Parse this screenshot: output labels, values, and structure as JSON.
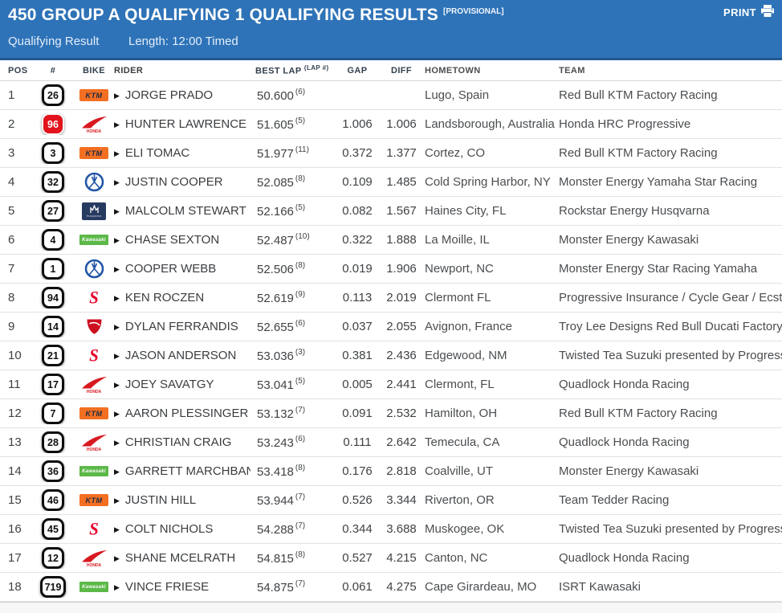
{
  "header": {
    "title": "450 GROUP A QUALIFYING 1 QUALIFYING RESULTS",
    "provisional": "[PROVISIONAL]",
    "print_label": "PRINT",
    "session_label": "Qualifying Result",
    "length_label": "Length: 12:00 Timed",
    "colors": {
      "header_bg": "#2e73b8",
      "header_border": "#215a8f",
      "accent_red_plate": "#e2131c"
    }
  },
  "columns": {
    "pos": "POS",
    "num": "#",
    "bike": "BIKE",
    "rider": "RIDER",
    "best_lap": "BEST LAP",
    "lap_sup": "(LAP #)",
    "gap": "GAP",
    "diff": "DIFF",
    "hometown": "HOMETOWN",
    "team": "TEAM"
  },
  "brand_colors": {
    "KTM": "#f36f21",
    "Honda": "#d71920",
    "Yamaha": "#2356a8",
    "Husqvarna": "#273a60",
    "Kawasaki": "#5cb848",
    "Suzuki": "#e4002b",
    "Ducati": "#cc0f1f"
  },
  "rows": [
    {
      "pos": "1",
      "num": "26",
      "plate": "standard",
      "bike": "KTM",
      "rider": "JORGE PRADO",
      "best_lap": "50.600",
      "lap": "6",
      "gap": "",
      "diff": "",
      "hometown": "Lugo, Spain",
      "team": "Red Bull KTM Factory Racing"
    },
    {
      "pos": "2",
      "num": "96",
      "plate": "red",
      "bike": "Honda",
      "rider": "HUNTER LAWRENCE",
      "best_lap": "51.605",
      "lap": "5",
      "gap": "1.006",
      "diff": "1.006",
      "hometown": "Landsborough, Australia",
      "team": "Honda HRC Progressive"
    },
    {
      "pos": "3",
      "num": "3",
      "plate": "standard",
      "bike": "KTM",
      "rider": "ELI TOMAC",
      "best_lap": "51.977",
      "lap": "11",
      "gap": "0.372",
      "diff": "1.377",
      "hometown": "Cortez, CO",
      "team": "Red Bull KTM Factory Racing"
    },
    {
      "pos": "4",
      "num": "32",
      "plate": "standard",
      "bike": "Yamaha",
      "rider": "JUSTIN COOPER",
      "best_lap": "52.085",
      "lap": "8",
      "gap": "0.109",
      "diff": "1.485",
      "hometown": "Cold Spring Harbor, NY",
      "team": "Monster Energy Yamaha Star Racing"
    },
    {
      "pos": "5",
      "num": "27",
      "plate": "standard",
      "bike": "Husqvarna",
      "rider": "MALCOLM STEWART",
      "best_lap": "52.166",
      "lap": "5",
      "gap": "0.082",
      "diff": "1.567",
      "hometown": "Haines City, FL",
      "team": "Rockstar Energy Husqvarna"
    },
    {
      "pos": "6",
      "num": "4",
      "plate": "standard",
      "bike": "Kawasaki",
      "rider": "CHASE SEXTON",
      "best_lap": "52.487",
      "lap": "10",
      "gap": "0.322",
      "diff": "1.888",
      "hometown": "La Moille, IL",
      "team": "Monster Energy Kawasaki"
    },
    {
      "pos": "7",
      "num": "1",
      "plate": "standard",
      "bike": "Yamaha",
      "rider": "COOPER WEBB",
      "best_lap": "52.506",
      "lap": "8",
      "gap": "0.019",
      "diff": "1.906",
      "hometown": "Newport, NC",
      "team": "Monster Energy Star Racing Yamaha"
    },
    {
      "pos": "8",
      "num": "94",
      "plate": "standard",
      "bike": "Suzuki",
      "rider": "KEN ROCZEN",
      "best_lap": "52.619",
      "lap": "9",
      "gap": "0.113",
      "diff": "2.019",
      "hometown": "Clermont FL",
      "team": "Progressive Insurance / Cycle Gear / Ecstar Suzuki"
    },
    {
      "pos": "9",
      "num": "14",
      "plate": "standard",
      "bike": "Ducati",
      "rider": "DYLAN FERRANDIS",
      "best_lap": "52.655",
      "lap": "6",
      "gap": "0.037",
      "diff": "2.055",
      "hometown": "Avignon, France",
      "team": "Troy Lee Designs Red Bull Ducati Factory Racing"
    },
    {
      "pos": "10",
      "num": "21",
      "plate": "standard",
      "bike": "Suzuki",
      "rider": "JASON ANDERSON",
      "best_lap": "53.036",
      "lap": "3",
      "gap": "0.381",
      "diff": "2.436",
      "hometown": "Edgewood, NM",
      "team": "Twisted Tea Suzuki presented by Progressive Insurance"
    },
    {
      "pos": "11",
      "num": "17",
      "plate": "standard",
      "bike": "Honda",
      "rider": "JOEY SAVATGY",
      "best_lap": "53.041",
      "lap": "5",
      "gap": "0.005",
      "diff": "2.441",
      "hometown": "Clermont, FL",
      "team": "Quadlock Honda Racing"
    },
    {
      "pos": "12",
      "num": "7",
      "plate": "standard",
      "bike": "KTM",
      "rider": "AARON PLESSINGER",
      "best_lap": "53.132",
      "lap": "7",
      "gap": "0.091",
      "diff": "2.532",
      "hometown": "Hamilton, OH",
      "team": "Red Bull KTM Factory Racing"
    },
    {
      "pos": "13",
      "num": "28",
      "plate": "standard",
      "bike": "Honda",
      "rider": "CHRISTIAN CRAIG",
      "best_lap": "53.243",
      "lap": "6",
      "gap": "0.111",
      "diff": "2.642",
      "hometown": "Temecula, CA",
      "team": "Quadlock Honda Racing"
    },
    {
      "pos": "14",
      "num": "36",
      "plate": "standard",
      "bike": "Kawasaki",
      "rider": "GARRETT MARCHBANKS",
      "best_lap": "53.418",
      "lap": "8",
      "gap": "0.176",
      "diff": "2.818",
      "hometown": "Coalville, UT",
      "team": "Monster Energy Kawasaki"
    },
    {
      "pos": "15",
      "num": "46",
      "plate": "standard",
      "bike": "KTM",
      "rider": "JUSTIN HILL",
      "best_lap": "53.944",
      "lap": "7",
      "gap": "0.526",
      "diff": "3.344",
      "hometown": "Riverton, OR",
      "team": "Team Tedder Racing"
    },
    {
      "pos": "16",
      "num": "45",
      "plate": "standard",
      "bike": "Suzuki",
      "rider": "COLT NICHOLS",
      "best_lap": "54.288",
      "lap": "7",
      "gap": "0.344",
      "diff": "3.688",
      "hometown": "Muskogee, OK",
      "team": "Twisted Tea Suzuki presented by Progressive Insurance"
    },
    {
      "pos": "17",
      "num": "12",
      "plate": "standard",
      "bike": "Honda",
      "rider": "SHANE MCELRATH",
      "best_lap": "54.815",
      "lap": "8",
      "gap": "0.527",
      "diff": "4.215",
      "hometown": "Canton, NC",
      "team": "Quadlock Honda Racing"
    },
    {
      "pos": "18",
      "num": "719",
      "plate": "standard",
      "bike": "Kawasaki",
      "rider": "VINCE FRIESE",
      "best_lap": "54.875",
      "lap": "7",
      "gap": "0.061",
      "diff": "4.275",
      "hometown": "Cape Girardeau, MO",
      "team": "ISRT Kawasaki"
    }
  ]
}
